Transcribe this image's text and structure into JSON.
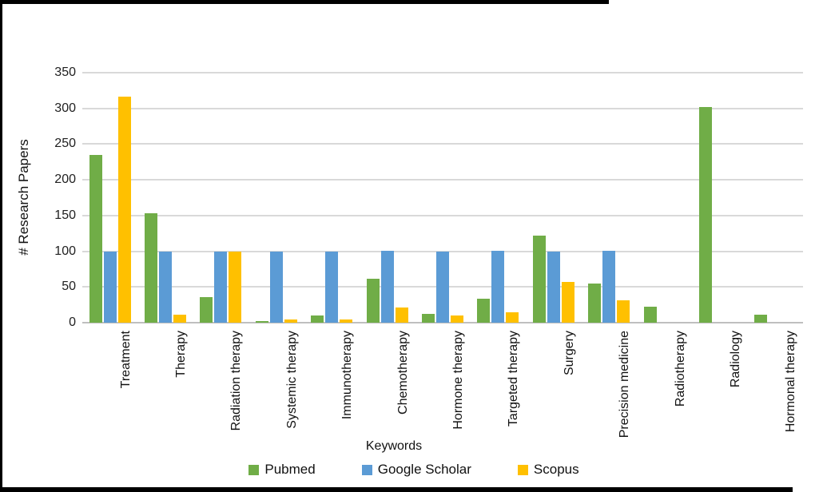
{
  "chart_data": {
    "type": "bar",
    "title": "",
    "xlabel": "Keywords",
    "ylabel": "# Research Papers",
    "ylim": [
      0,
      350
    ],
    "ytick_step": 50,
    "grid": true,
    "legend_position": "bottom",
    "categories": [
      "Treatment",
      "Therapy",
      "Radiation therapy",
      "Systemic therapy",
      "Immunotherapy",
      "Chemotherapy",
      "Hormone therapy",
      "Targeted therapy",
      "Surgery",
      "Precision medicine",
      "Radiotherapy",
      "Radiology",
      "Hormonal therapy"
    ],
    "series": [
      {
        "name": "Pubmed",
        "color": "#70AD47",
        "values": [
          235,
          153,
          36,
          2,
          10,
          62,
          12,
          33,
          122,
          55,
          22,
          302,
          11
        ]
      },
      {
        "name": "Google Scholar",
        "color": "#5B9BD5",
        "values": [
          100,
          100,
          100,
          100,
          100,
          101,
          100,
          101,
          100,
          101,
          0,
          0,
          0
        ]
      },
      {
        "name": "Scopus",
        "color": "#FFC000",
        "values": [
          316,
          11,
          100,
          4,
          5,
          21,
          10,
          15,
          57,
          31,
          0,
          0,
          0
        ]
      }
    ]
  },
  "colors": {
    "gridline": "#d9d9d9",
    "axis_line": "#bfbfbf",
    "frame": "#000000"
  }
}
